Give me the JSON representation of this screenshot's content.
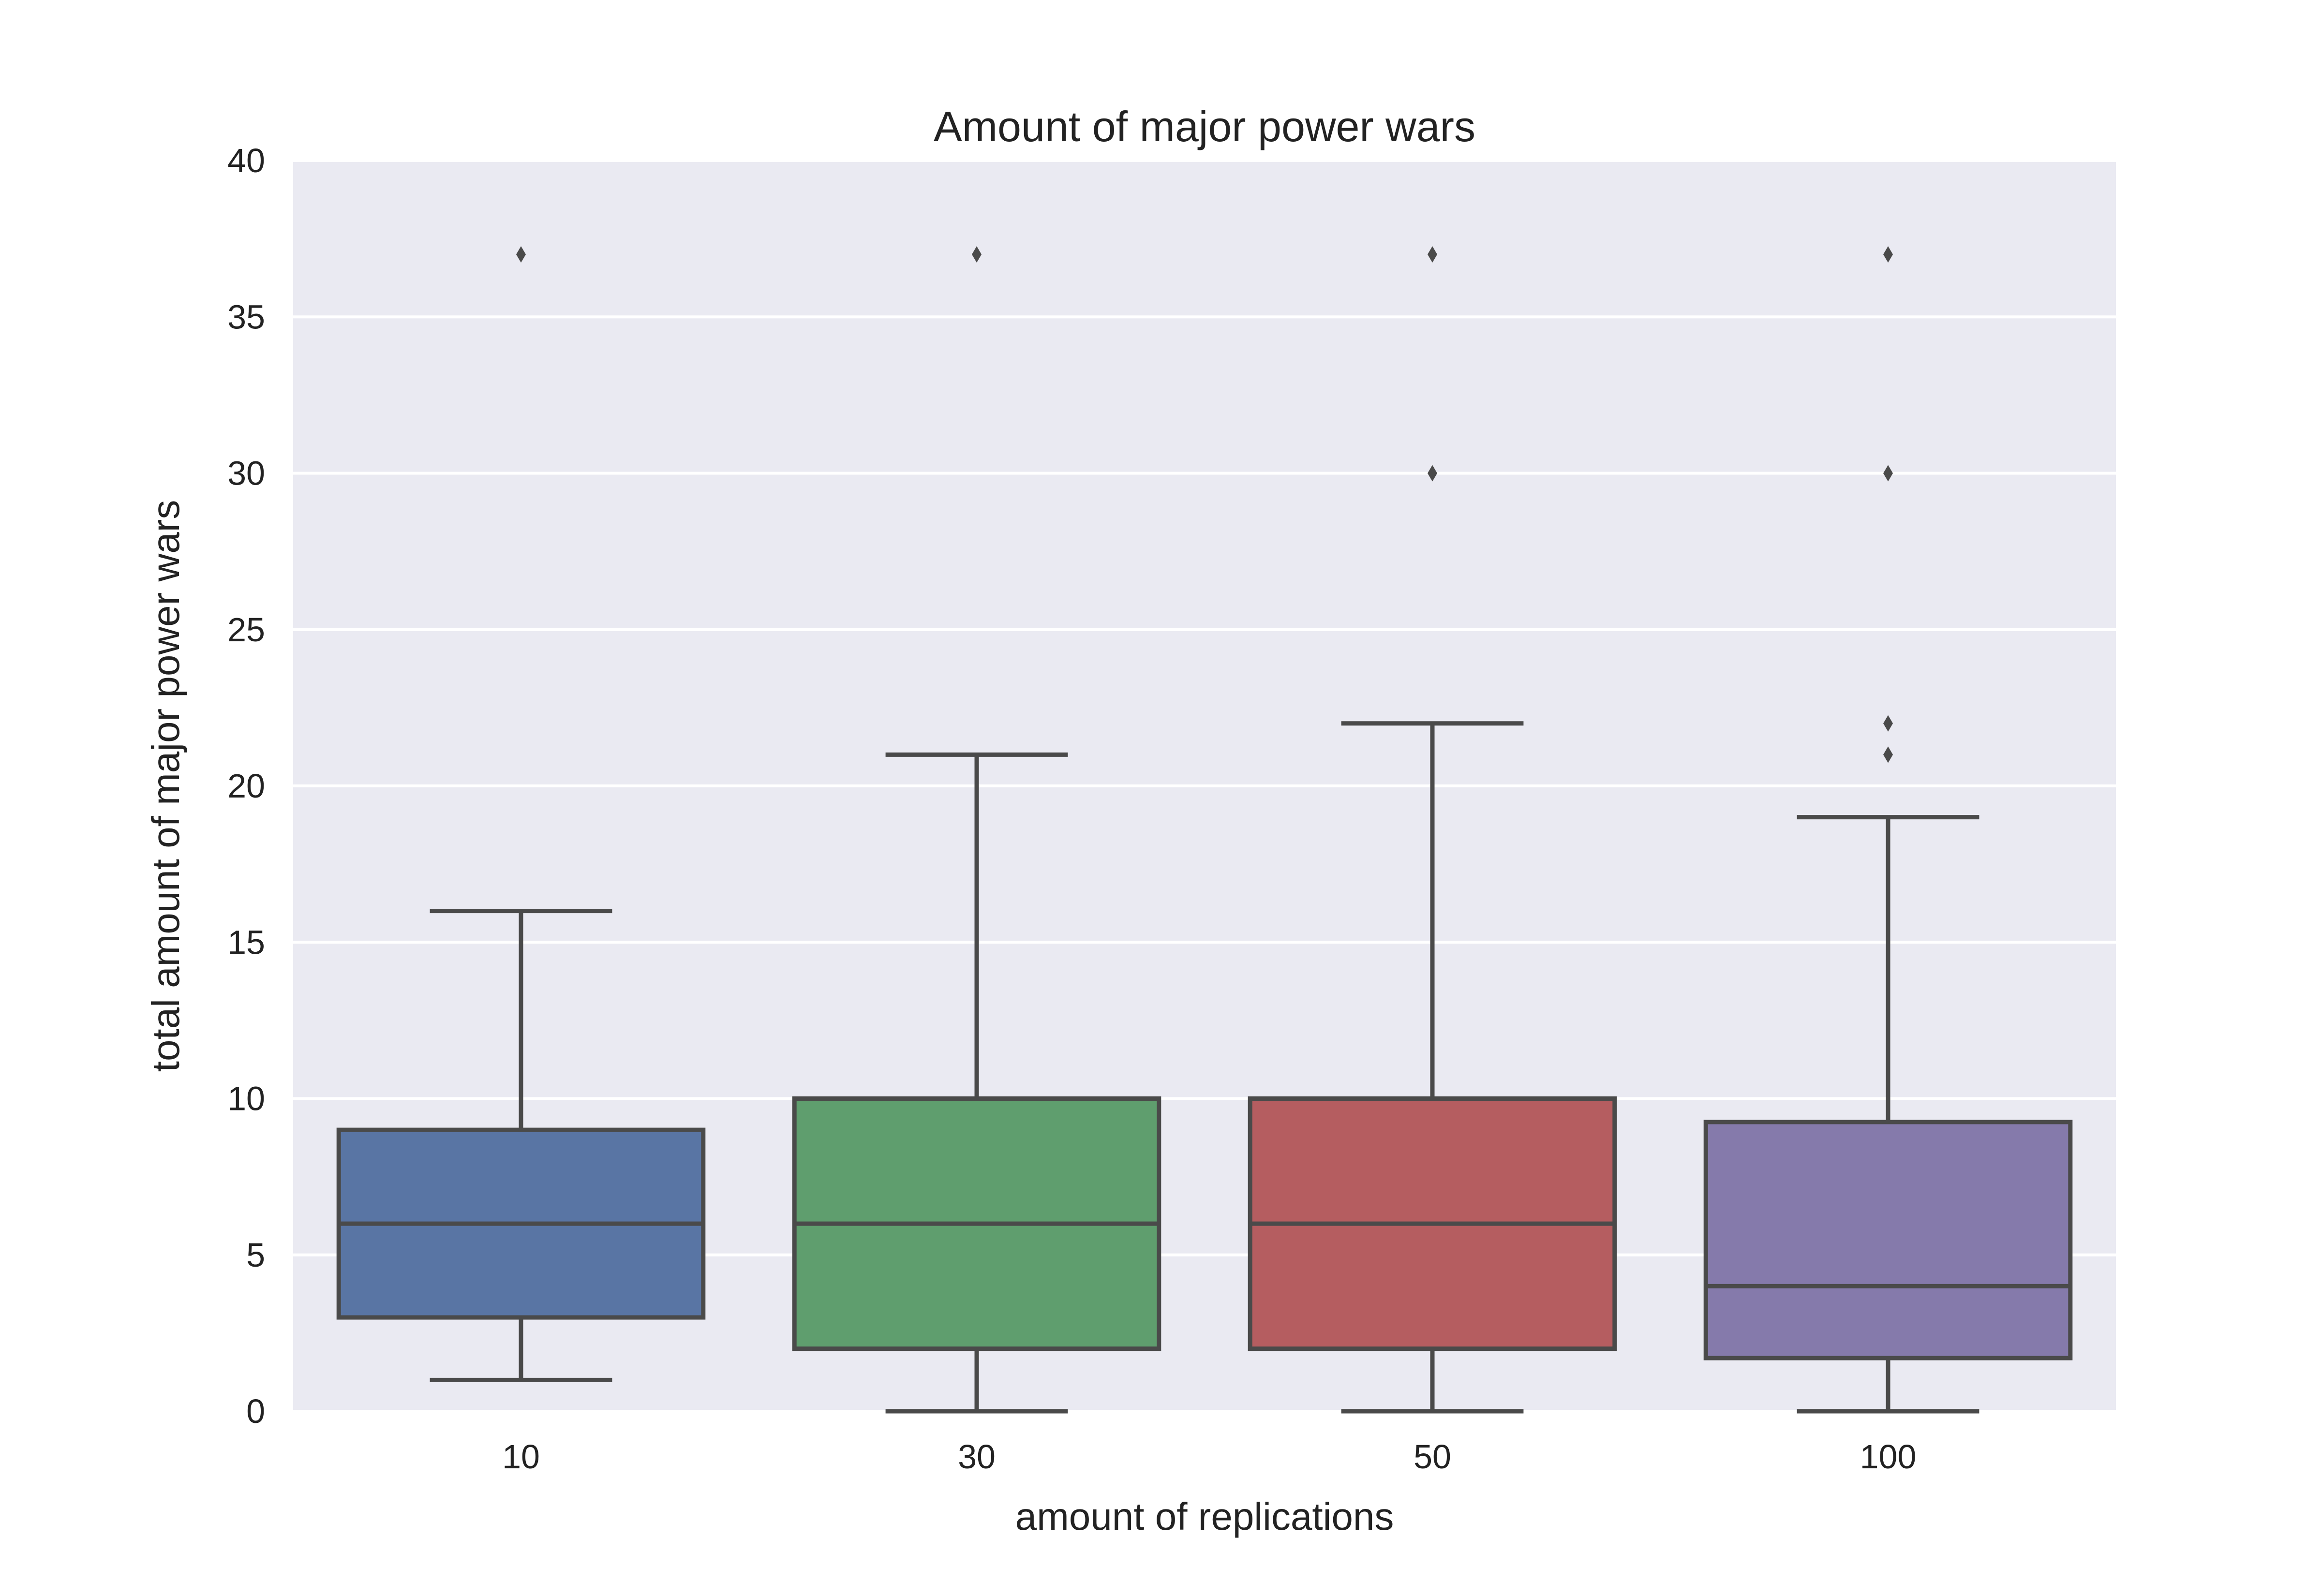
{
  "chart_data": {
    "type": "box",
    "title": "Amount of major power wars",
    "xlabel": "amount of replications",
    "ylabel": "total amount of major power wars",
    "ylim": [
      0,
      40
    ],
    "yticks": [
      0,
      5,
      10,
      15,
      20,
      25,
      30,
      35,
      40
    ],
    "grid": true,
    "categories": [
      "10",
      "30",
      "50",
      "100"
    ],
    "boxes": [
      {
        "category": "10",
        "whisker_low": 1,
        "q1": 3,
        "median": 6,
        "q3": 9,
        "whisker_high": 16,
        "outliers": [
          37
        ]
      },
      {
        "category": "30",
        "whisker_low": 0,
        "q1": 2,
        "median": 6,
        "q3": 10,
        "whisker_high": 21,
        "outliers": [
          37
        ]
      },
      {
        "category": "50",
        "whisker_low": 0,
        "q1": 2,
        "median": 6,
        "q3": 10,
        "whisker_high": 22,
        "outliers": [
          30,
          37
        ]
      },
      {
        "category": "100",
        "whisker_low": 0,
        "q1": 1.7,
        "median": 4,
        "q3": 9.25,
        "whisker_high": 19,
        "outliers": [
          21,
          22,
          30,
          37
        ]
      }
    ],
    "colors": {
      "background": "#EAEAF2",
      "grid": "#FFFFFF",
      "lines": "#4A4A4A",
      "boxes": [
        "#5975A4",
        "#5F9E6E",
        "#B55D60",
        "#857AAB"
      ]
    }
  }
}
